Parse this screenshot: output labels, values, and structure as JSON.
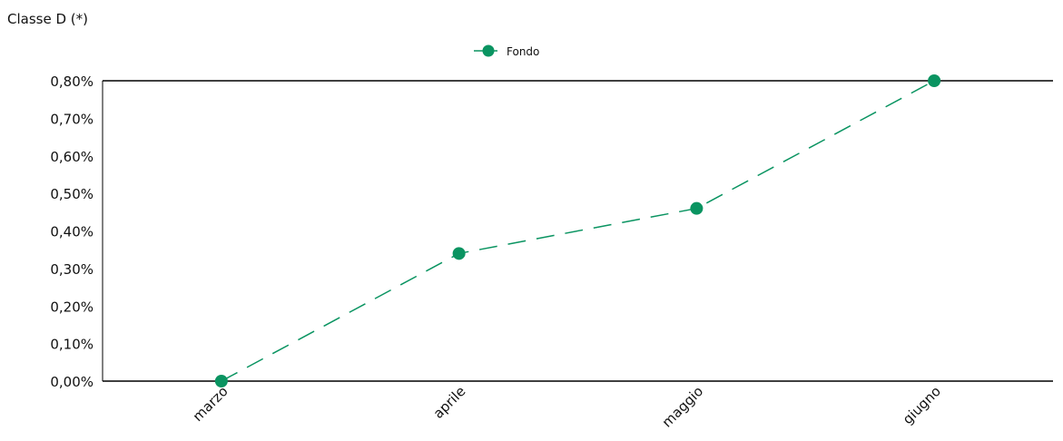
{
  "chart_data": {
    "type": "line",
    "title": "Classe D (*)",
    "categories": [
      "marzo",
      "aprile",
      "maggio",
      "giugno"
    ],
    "series": [
      {
        "name": "Fondo",
        "values": [
          0.0,
          0.34,
          0.46,
          0.8
        ],
        "color": "#0a9461",
        "line_style": "dashed",
        "marker": "circle"
      }
    ],
    "ylim": [
      0,
      0.8
    ],
    "yticks": [
      0,
      0.1,
      0.2,
      0.3,
      0.4,
      0.5,
      0.6,
      0.7,
      0.8
    ],
    "ytick_labels": [
      "0,00%",
      "0,10%",
      "0,20%",
      "0,30%",
      "0,40%",
      "0,50%",
      "0,60%",
      "0,70%",
      "0,80%"
    ],
    "xlabel": "",
    "ylabel": "",
    "grid": false,
    "legend": "top-center"
  }
}
